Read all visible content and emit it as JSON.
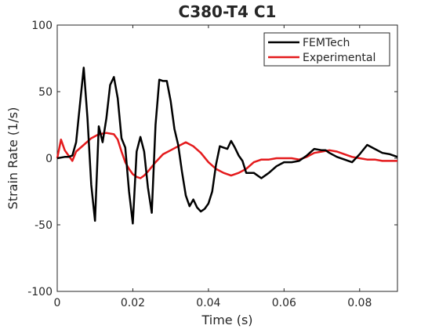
{
  "chart_data": {
    "type": "line",
    "title": "C380-T4 C1",
    "xlabel": "Time (s)",
    "ylabel": "Strain Rate (1/s)",
    "xlim": [
      0,
      0.09
    ],
    "ylim": [
      -100,
      100
    ],
    "xticks": [
      0,
      0.02,
      0.04,
      0.06,
      0.08
    ],
    "xtick_labels": [
      "0",
      "0.02",
      "0.04",
      "0.06",
      "0.08"
    ],
    "yticks": [
      -100,
      -50,
      0,
      50,
      100
    ],
    "ytick_labels": [
      "-100",
      "-50",
      "0",
      "50",
      "100"
    ],
    "grid": false,
    "legend_position": "top-right",
    "series": [
      {
        "name": "FEMTech",
        "color": "#000000",
        "x": [
          0,
          0.002,
          0.003,
          0.004,
          0.005,
          0.006,
          0.007,
          0.008,
          0.009,
          0.01,
          0.011,
          0.012,
          0.013,
          0.014,
          0.015,
          0.016,
          0.017,
          0.018,
          0.019,
          0.02,
          0.021,
          0.022,
          0.023,
          0.024,
          0.025,
          0.026,
          0.027,
          0.028,
          0.029,
          0.03,
          0.031,
          0.032,
          0.033,
          0.034,
          0.035,
          0.036,
          0.037,
          0.038,
          0.039,
          0.04,
          0.041,
          0.042,
          0.043,
          0.044,
          0.045,
          0.046,
          0.047,
          0.048,
          0.049,
          0.05,
          0.052,
          0.054,
          0.056,
          0.058,
          0.06,
          0.062,
          0.064,
          0.066,
          0.068,
          0.07,
          0.071,
          0.072,
          0.074,
          0.076,
          0.078,
          0.08,
          0.082,
          0.084,
          0.086,
          0.088,
          0.09
        ],
        "values": [
          0,
          1,
          1,
          2,
          12,
          40,
          68,
          30,
          -20,
          -47,
          24,
          12,
          30,
          55,
          61,
          45,
          15,
          8,
          -25,
          -49,
          5,
          16,
          5,
          -22,
          -41,
          25,
          59,
          58,
          58,
          43,
          22,
          10,
          -10,
          -28,
          -36,
          -31,
          -37,
          -40,
          -38,
          -34,
          -25,
          -5,
          9,
          8,
          7,
          13,
          8,
          2,
          -2,
          -11,
          -11,
          -15,
          -11,
          -6,
          -3,
          -3,
          -2,
          2,
          7,
          6,
          6,
          4,
          1,
          -1,
          -3,
          3,
          10,
          7,
          4,
          3,
          1
        ]
      },
      {
        "name": "Experimental",
        "color": "#e41a1c",
        "x": [
          0,
          0.001,
          0.002,
          0.003,
          0.004,
          0.005,
          0.007,
          0.009,
          0.011,
          0.013,
          0.015,
          0.016,
          0.017,
          0.018,
          0.019,
          0.02,
          0.021,
          0.022,
          0.023,
          0.024,
          0.026,
          0.028,
          0.03,
          0.032,
          0.034,
          0.036,
          0.038,
          0.04,
          0.042,
          0.044,
          0.046,
          0.048,
          0.05,
          0.052,
          0.054,
          0.056,
          0.058,
          0.06,
          0.062,
          0.064,
          0.066,
          0.068,
          0.07,
          0.072,
          0.074,
          0.076,
          0.078,
          0.08,
          0.082,
          0.084,
          0.086,
          0.088,
          0.09
        ],
        "values": [
          0,
          14,
          6,
          2,
          -2,
          5,
          10,
          15,
          18,
          19,
          18,
          14,
          5,
          -3,
          -8,
          -12,
          -14,
          -15,
          -13,
          -10,
          -3,
          3,
          6,
          9,
          12,
          9,
          4,
          -3,
          -8,
          -11,
          -13,
          -11,
          -8,
          -3,
          -1,
          -1,
          0,
          0,
          0,
          -1,
          1,
          4,
          5,
          6,
          5,
          3,
          1,
          0,
          -1,
          -1,
          -2,
          -2,
          -2
        ]
      }
    ]
  }
}
